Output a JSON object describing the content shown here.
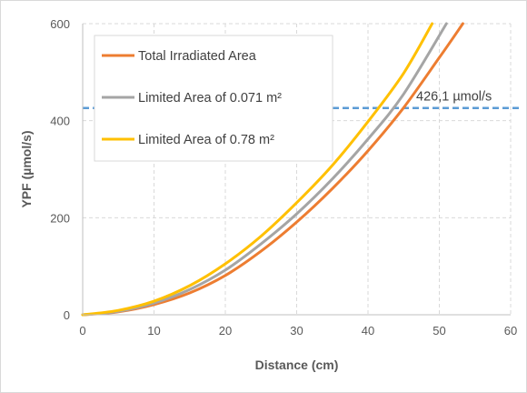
{
  "chart_data": {
    "type": "line",
    "xlabel": "Distance  (cm)",
    "ylabel": "YPF (µmol/s)",
    "xlim": [
      0,
      60
    ],
    "ylim": [
      0,
      600
    ],
    "x_ticks": [
      0,
      10,
      20,
      30,
      40,
      50,
      60
    ],
    "y_ticks": [
      0,
      200,
      400,
      600
    ],
    "grid": true,
    "legend_position": "top-left",
    "series": [
      {
        "name": "Total Irradiated Area",
        "color": "#ed7d31",
        "x": [
          0,
          5,
          10,
          15,
          20,
          25,
          30,
          35,
          40,
          45,
          50,
          53.3
        ],
        "y": [
          0,
          6,
          21,
          45,
          81,
          131,
          191,
          260,
          338,
          427,
          530,
          600
        ]
      },
      {
        "name": "Limited Area of 0.071 m²",
        "color": "#a5a5a5",
        "x": [
          0,
          5,
          10,
          15,
          20,
          25,
          30,
          35,
          40,
          45,
          51
        ],
        "y": [
          0,
          7,
          24,
          52,
          92,
          146,
          208,
          280,
          362,
          455,
          600
        ]
      },
      {
        "name": "Limited Area of 0.78 m²",
        "color": "#ffc000",
        "x": [
          0,
          5,
          10,
          15,
          20,
          25,
          30,
          35,
          40,
          45,
          49
        ],
        "y": [
          0,
          9,
          28,
          60,
          105,
          162,
          231,
          308,
          398,
          498,
          600
        ]
      }
    ],
    "reference_line": {
      "y": 426.1,
      "label": "426,1 µmol/s",
      "color": "#5b9bd5",
      "style": "dashed"
    }
  }
}
